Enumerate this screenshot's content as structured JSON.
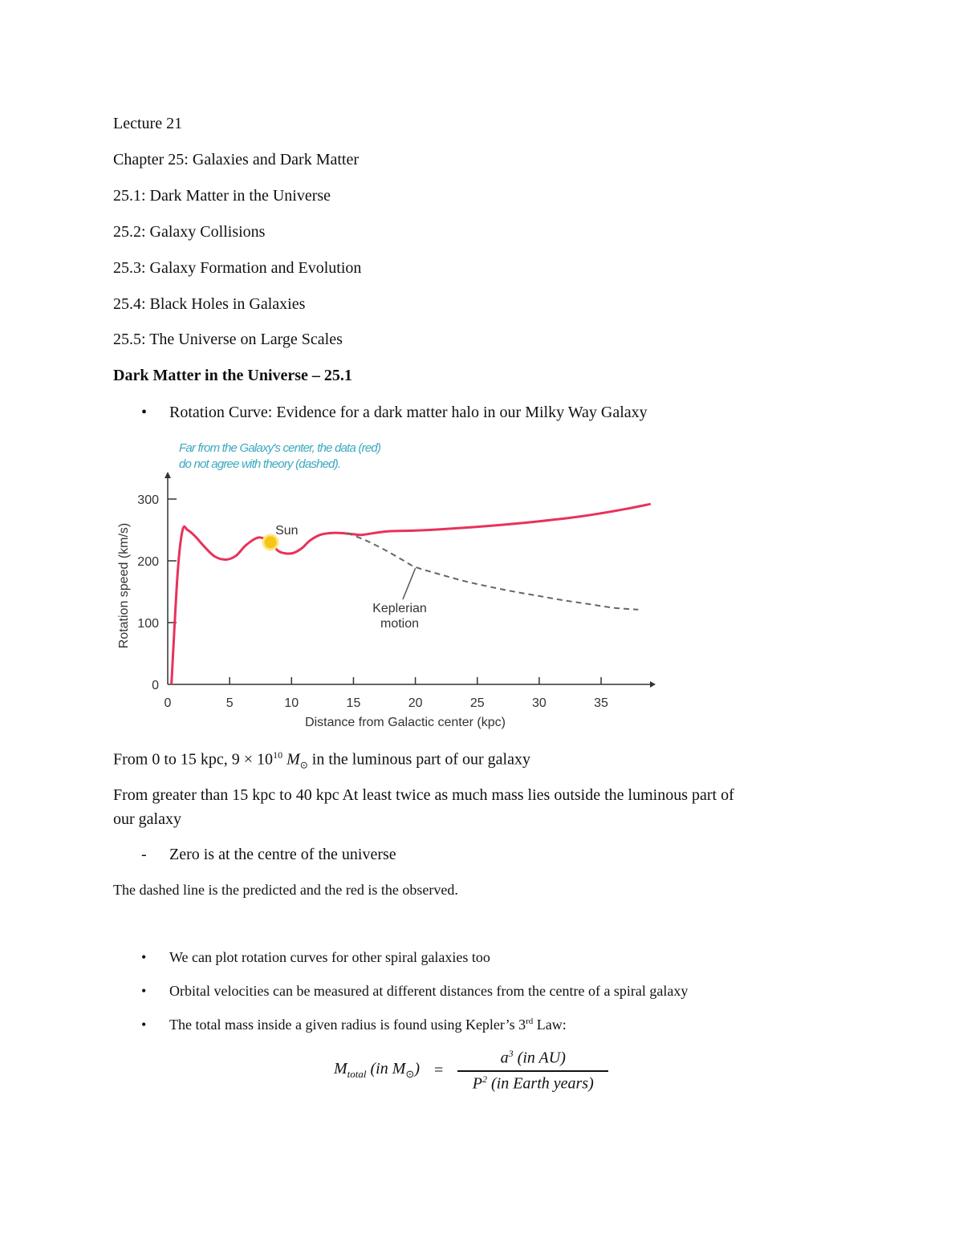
{
  "header": {
    "lecture": "Lecture 21",
    "chapter": "Chapter 25: Galaxies and Dark Matter",
    "sections": [
      "25.1: Dark Matter in the Universe",
      "25.2: Galaxy Collisions",
      "25.3: Galaxy Formation and Evolution",
      "25.4: Black Holes in Galaxies",
      "25.5: The Universe on Large Scales"
    ]
  },
  "section_heading": "Dark Matter in the Universe – 25.1",
  "bullet1": "Rotation Curve: Evidence for a dark matter halo in our Milky Way Galaxy",
  "chart_data": {
    "type": "line",
    "annotation": [
      "Far from the Galaxy's center, the data (red)",
      "do not agree with theory (dashed)."
    ],
    "xlabel": "Distance from Galactic center (kpc)",
    "ylabel": "Rotation speed (km/s)",
    "xlim": [
      0,
      39
    ],
    "ylim": [
      0,
      340
    ],
    "xticks": [
      "0",
      "5",
      "10",
      "15",
      "20",
      "25",
      "30",
      "35"
    ],
    "yticks": [
      "0",
      "100",
      "200",
      "300"
    ],
    "grid": false,
    "labels": {
      "sun": "Sun",
      "keplerian": [
        "Keplerian",
        "motion"
      ]
    },
    "sun_position": [
      8.3,
      230
    ],
    "colors": {
      "observed": "#e8325a",
      "keplerian": "#666666",
      "annotation": "#3aa8c0",
      "sun": "#f5c518"
    },
    "series": [
      {
        "style": "solid-red",
        "x": [
          0.3,
          0.8,
          1.2,
          1.6,
          2.2,
          3,
          3.8,
          4.7,
          5.5,
          6.3,
          7.2,
          7.8,
          8.3,
          9,
          10,
          10.8,
          11.5,
          12.3,
          13.2,
          14,
          15,
          15.7,
          17,
          18,
          20,
          22,
          25,
          28,
          30,
          33,
          35,
          37,
          39
        ],
        "y": [
          0,
          180,
          250,
          250,
          240,
          222,
          207,
          202,
          208,
          225,
          237,
          236,
          230,
          215,
          212,
          220,
          233,
          242,
          245,
          245,
          243,
          242,
          246,
          248,
          249,
          251,
          255,
          260,
          264,
          271,
          277,
          284,
          292
        ]
      },
      {
        "style": "dashed-gray",
        "x": [
          14.5,
          16,
          17.5,
          19,
          20,
          22,
          24,
          26,
          28,
          30,
          32,
          34,
          36,
          38
        ],
        "y": [
          245,
          233,
          218,
          201,
          190,
          178,
          167,
          158,
          150,
          143,
          136,
          130,
          124,
          121
        ]
      }
    ]
  },
  "mass_line1": {
    "prefix": "From 0 to 15 kpc, 9 × 10",
    "exp": "10",
    "sym": "M",
    "sub": "⊙",
    "suffix": " in the luminous part of our galaxy"
  },
  "mass_line2a": "From greater than 15 kpc to 40 kpc At least twice as much mass lies outside the luminous part of",
  "mass_line2b": "our galaxy",
  "dash_item": "Zero is at the centre of the universe",
  "dash_char": "-",
  "note": "The dashed line is the predicted and the red is the observed.",
  "bullets2": [
    "We can plot rotation curves for other spiral galaxies too",
    "Orbital velocities can be measured at different distances from the centre of a spiral galaxy",
    "The total mass inside a given radius is found using Kepler’s 3"
  ],
  "kepler_sup": "rd",
  "kepler_tail": " Law:",
  "bullet_char": "•",
  "formula": {
    "lhs": "M",
    "lhs_sub": "total",
    "lhs_paren": " (in M",
    "sun": "⊙",
    "close": ")",
    "eq": "=",
    "num": "a",
    "num_sup": "3",
    "num_tail": " (in AU)",
    "den": "P",
    "den_sup": "2",
    "den_tail": " (in Earth years)"
  }
}
